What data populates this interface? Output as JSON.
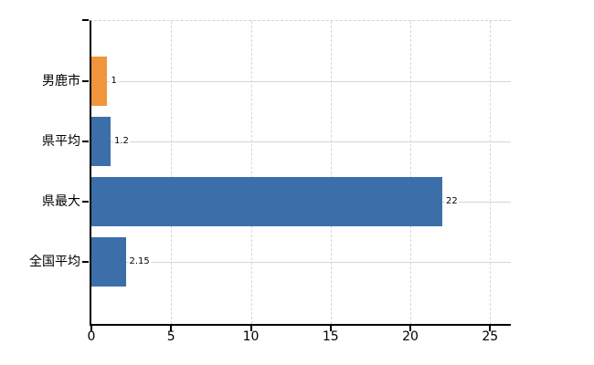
{
  "chart_data": {
    "type": "bar",
    "orientation": "horizontal",
    "title": "",
    "xlabel": "",
    "ylabel": "",
    "legend_position": "none",
    "grid": true,
    "categories": [
      "男鹿市",
      "県平均",
      "県最大",
      "全国平均"
    ],
    "values": [
      1,
      1.2,
      22,
      2.15
    ],
    "value_labels": [
      "1",
      "1.2",
      "22",
      "2.15"
    ],
    "bar_colors": [
      "#f0953b",
      "#3c6fa9",
      "#3c6fa9",
      "#3c6fa9"
    ],
    "x_tick_values": [
      0,
      5,
      10,
      15,
      20,
      25
    ],
    "x_tick_labels": [
      "0",
      "5",
      "10",
      "15",
      "20",
      "25"
    ],
    "xlim": [
      0,
      26.3
    ],
    "colors": {
      "background": "#ffffff",
      "highlight_bar": "#f0953b",
      "default_bar": "#3c6fa9",
      "grid_line": "#d6d6d6",
      "axis_line": "#000000",
      "text": "#000000"
    }
  }
}
